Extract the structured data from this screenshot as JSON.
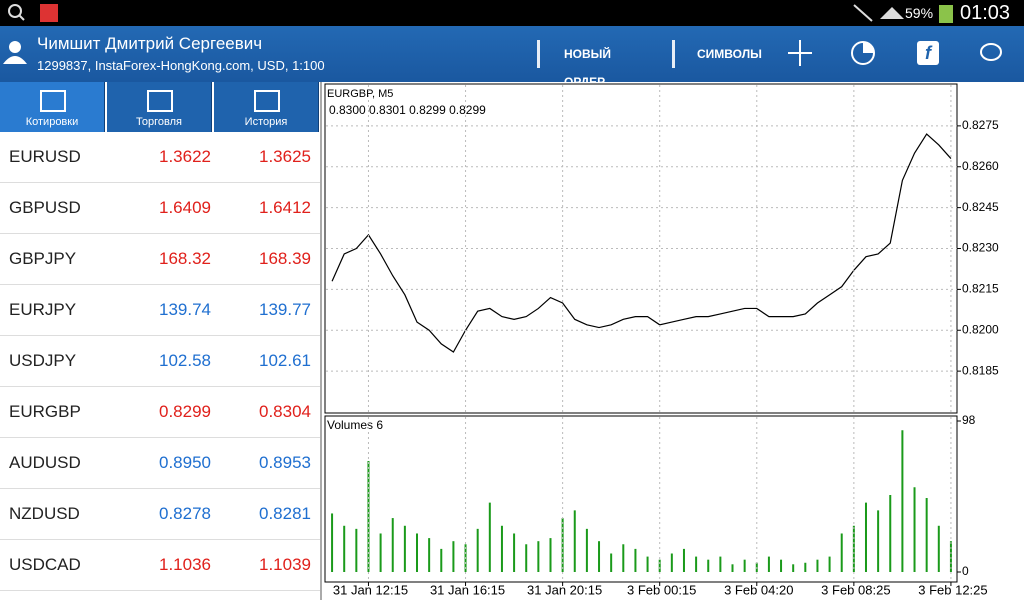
{
  "status_bar": {
    "battery": "59%",
    "time": "01:03"
  },
  "header": {
    "account_name": "Чимшит Дмитрий Сергеевич",
    "account_info": "1299837, InstaForex-HongKong.com, USD, 1:100",
    "buttons": [
      "НОВЫЙ ОРДЕР",
      "СИМВОЛЫ"
    ]
  },
  "tabs": [
    "Котировки",
    "Торговля",
    "История"
  ],
  "quotes": {
    "rows": [
      {
        "symbol": "EURUSD",
        "bid": "1.3622",
        "ask": "1.3625",
        "color": "#e0201b"
      },
      {
        "symbol": "GBPUSD",
        "bid": "1.6409",
        "ask": "1.6412",
        "color": "#e0201b"
      },
      {
        "symbol": "GBPJPY",
        "bid": "168.32",
        "ask": "168.39",
        "color": "#e0201b"
      },
      {
        "symbol": "EURJPY",
        "bid": "139.74",
        "ask": "139.77",
        "color": "#1f6fd0"
      },
      {
        "symbol": "USDJPY",
        "bid": "102.58",
        "ask": "102.61",
        "color": "#1f6fd0"
      },
      {
        "symbol": "EURGBP",
        "bid": "0.8299",
        "ask": "0.8304",
        "color": "#e0201b"
      },
      {
        "symbol": "AUDUSD",
        "bid": "0.8950",
        "ask": "0.8953",
        "color": "#1f6fd0"
      },
      {
        "symbol": "NZDUSD",
        "bid": "0.8278",
        "ask": "0.8281",
        "color": "#1f6fd0"
      },
      {
        "symbol": "USDCAD",
        "bid": "1.1036",
        "ask": "1.1039",
        "color": "#e0201b"
      }
    ]
  },
  "chart_data": [
    {
      "type": "line",
      "title": "EURGBP, M5",
      "subtitle": "0.8300 0.8301 0.8299 0.8299",
      "color": "#000000",
      "values": [
        0.8218,
        0.8228,
        0.823,
        0.8235,
        0.8228,
        0.822,
        0.8213,
        0.8203,
        0.82,
        0.8195,
        0.8192,
        0.82,
        0.8207,
        0.8208,
        0.8205,
        0.8204,
        0.8205,
        0.8208,
        0.8212,
        0.821,
        0.8204,
        0.8202,
        0.8201,
        0.8202,
        0.8204,
        0.8205,
        0.8205,
        0.8202,
        0.8203,
        0.8204,
        0.8205,
        0.8205,
        0.8206,
        0.8207,
        0.8208,
        0.8208,
        0.8205,
        0.8205,
        0.8205,
        0.8206,
        0.821,
        0.8213,
        0.8216,
        0.8222,
        0.8227,
        0.8228,
        0.8232,
        0.8255,
        0.8265,
        0.8272,
        0.8268,
        0.8263
      ],
      "ylim": [
        0.817,
        0.829
      ],
      "yticks": [
        0.8185,
        {
          "value": 0.82,
          "label": "0.8200"
        },
        0.8215,
        {
          "value": 0.823,
          "label": "0.8230"
        },
        0.8245,
        {
          "value": 0.826,
          "label": "0.8260"
        },
        0.8275
      ],
      "grid": true
    },
    {
      "type": "bar",
      "title": "Volumes 6",
      "color": "#1a9a1a",
      "categories": [
        null,
        null,
        null,
        "31 Jan 12:15",
        null,
        null,
        null,
        null,
        null,
        null,
        null,
        "31 Jan 16:15",
        null,
        null,
        null,
        null,
        null,
        null,
        null,
        "31 Jan 20:15",
        null,
        null,
        null,
        null,
        null,
        null,
        null,
        "3 Feb 00:15",
        null,
        null,
        null,
        null,
        null,
        null,
        null,
        "3 Feb 04:20",
        null,
        null,
        null,
        null,
        null,
        null,
        null,
        "3 Feb 08:25",
        null,
        null,
        null,
        null,
        null,
        null,
        null,
        "3 Feb 12:25"
      ],
      "values": [
        38,
        30,
        28,
        72,
        25,
        35,
        30,
        25,
        22,
        15,
        20,
        18,
        28,
        45,
        30,
        25,
        18,
        20,
        22,
        35,
        40,
        28,
        20,
        12,
        18,
        15,
        10,
        8,
        12,
        15,
        10,
        8,
        10,
        5,
        8,
        6,
        10,
        8,
        5,
        6,
        8,
        10,
        25,
        30,
        45,
        40,
        50,
        92,
        55,
        48,
        30,
        20
      ],
      "ylim": [
        0,
        98
      ],
      "yticks": [
        0,
        98
      ],
      "grid": true
    }
  ]
}
